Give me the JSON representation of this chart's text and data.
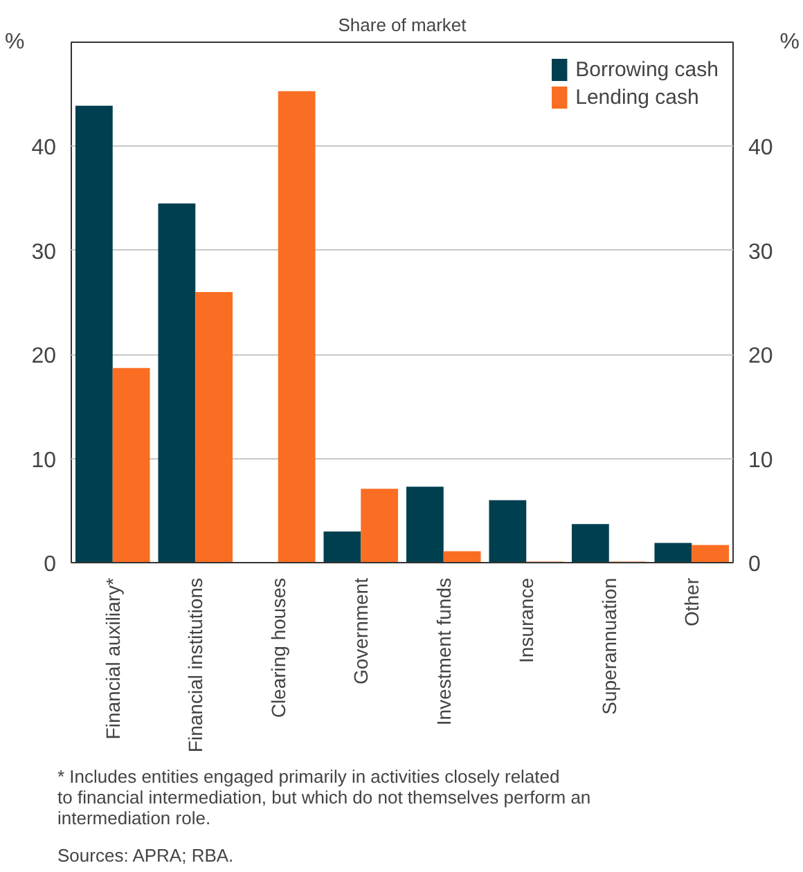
{
  "chart_data": {
    "type": "bar",
    "title": "Share of market",
    "categories": [
      "Financial auxiliary*",
      "Financial institutions",
      "Clearing houses",
      "Government",
      "Investment funds",
      "Insurance",
      "Superannuation",
      "Other"
    ],
    "series": [
      {
        "name": "Borrowing cash",
        "color": "#003f4f",
        "values": [
          43.9,
          34.5,
          0,
          3.0,
          7.3,
          6.0,
          3.7,
          1.9
        ]
      },
      {
        "name": "Lending cash",
        "color": "#fa6e23",
        "values": [
          18.7,
          26.0,
          45.3,
          7.1,
          1.1,
          0.1,
          0.1,
          1.7
        ]
      }
    ],
    "ylabel": "%",
    "y2label": "%",
    "ylim": [
      0,
      50
    ],
    "yticks": [
      0,
      10,
      20,
      30,
      40
    ],
    "y2lim": [
      0,
      50
    ],
    "y2ticks": [
      0,
      10,
      20,
      30,
      40
    ],
    "grid": "y",
    "legend": "top right",
    "annotations": [
      "* Includes entities engaged primarily in activities closely related\n   to financial intermediation, but which do not themselves perform an\n   intermediation role.",
      "Sources:  APRA; RBA."
    ]
  }
}
